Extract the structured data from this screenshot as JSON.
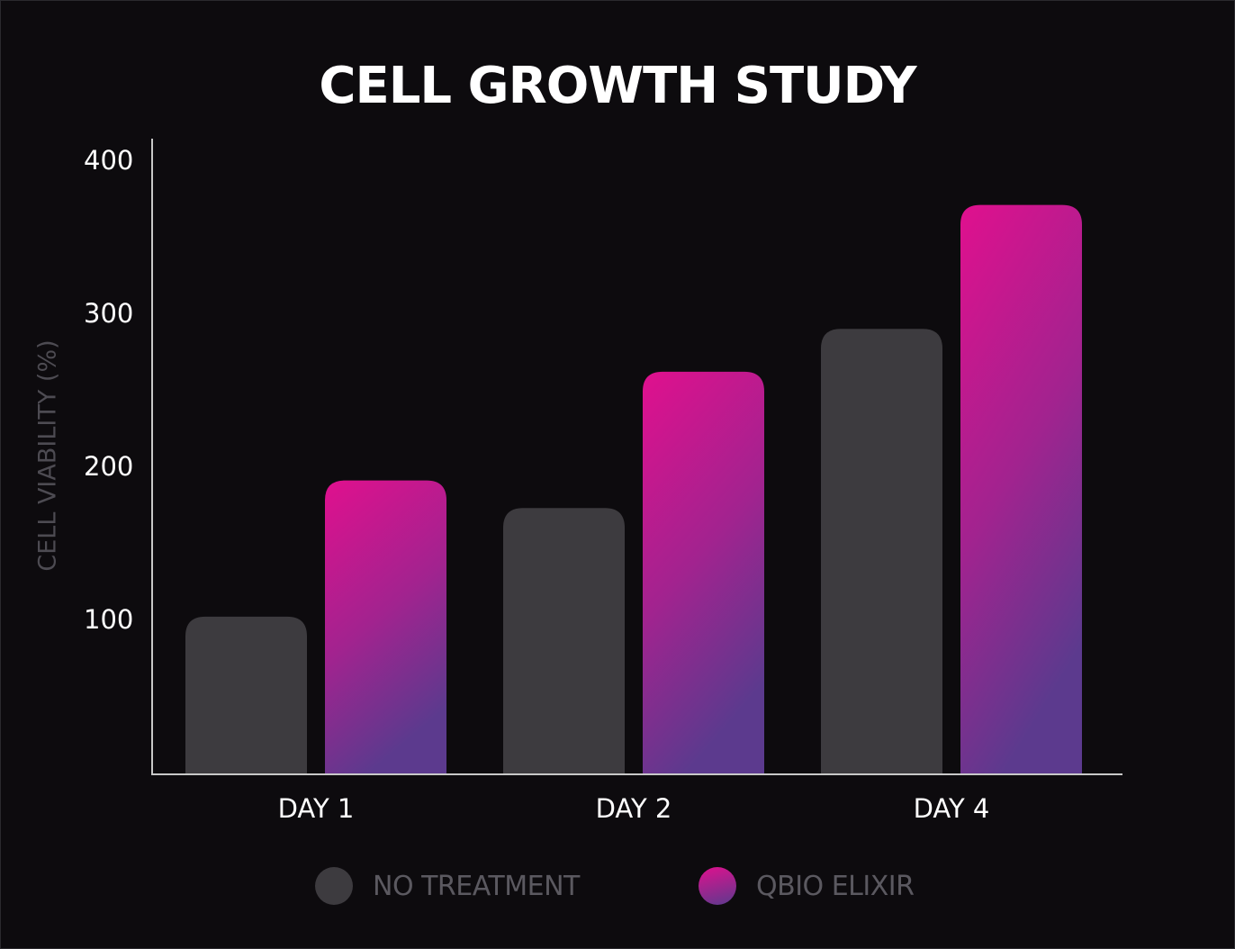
{
  "chart_data": {
    "type": "bar",
    "title": "CELL GROWTH STUDY",
    "xlabel": "",
    "ylabel": "CELL VIABILITY (%)",
    "categories": [
      "DAY 1",
      "DAY 2",
      "DAY 4"
    ],
    "yticks": [
      100,
      200,
      300,
      400
    ],
    "ylim": [
      0,
      413
    ],
    "grid": false,
    "legend_position": "bottom",
    "series": [
      {
        "name": "NO TREATMENT",
        "values": [
          103,
          174,
          291
        ],
        "color": "#3d3b3f"
      },
      {
        "name": "QBIO ELIXIR",
        "values": [
          192,
          263,
          372
        ],
        "color_top": "#e0108e",
        "color_bottom": "#5c3a8e"
      }
    ]
  },
  "colors": {
    "background": "#0d0b0e",
    "axis": "#c8c8c8"
  }
}
